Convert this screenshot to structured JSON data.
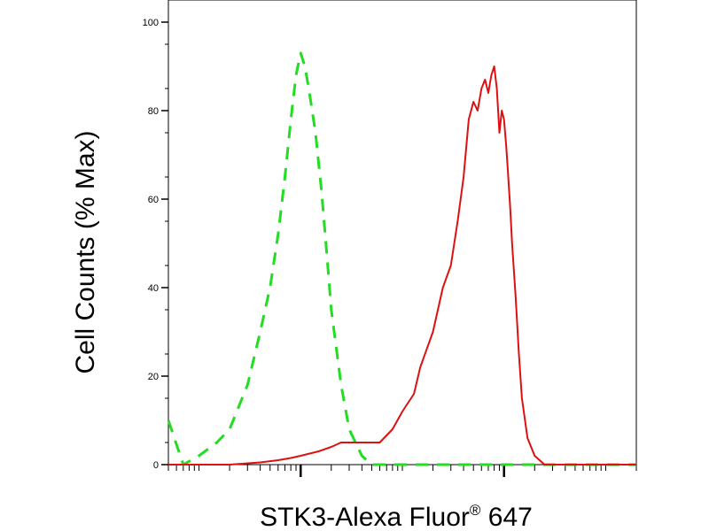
{
  "chart_data": {
    "type": "line",
    "title": "",
    "xlabel": "STK3-Alexa Fluor",
    "xlabel_super": "®",
    "xlabel_suffix": " 647",
    "ylabel": "Cell Counts (% Max)",
    "xscale": "log",
    "xlim": [
      0.5,
      20000
    ],
    "ylim": [
      0,
      100
    ],
    "y_ticks": [
      0,
      20,
      40,
      60,
      80,
      100
    ],
    "x_major_ticks": [
      10,
      1000
    ],
    "grid": false,
    "legend": "none",
    "colors": {
      "control": "#22dd22",
      "stk3": "#dd1111"
    },
    "series": [
      {
        "style": "dashed",
        "color": "#22dd22",
        "x": [
          0.5,
          0.7,
          1,
          1.5,
          2,
          3,
          4,
          5,
          6,
          7,
          8,
          9,
          10,
          11,
          12,
          14,
          16,
          18,
          20,
          25,
          30,
          40,
          50,
          60,
          80,
          100,
          150,
          300,
          1000,
          3000,
          20000
        ],
        "y": [
          10,
          0,
          2,
          5,
          8,
          18,
          30,
          40,
          52,
          65,
          78,
          88,
          93,
          90,
          85,
          75,
          62,
          48,
          35,
          18,
          8,
          2,
          0,
          0,
          0,
          0,
          0,
          0,
          0,
          0,
          0
        ]
      },
      {
        "style": "solid",
        "color": "#dd1111",
        "x": [
          0.5,
          1,
          2,
          4,
          6,
          8,
          10,
          15,
          20,
          25,
          30,
          40,
          60,
          80,
          100,
          130,
          150,
          200,
          250,
          300,
          350,
          400,
          450,
          500,
          550,
          600,
          650,
          700,
          750,
          800,
          850,
          900,
          950,
          1000,
          1050,
          1100,
          1150,
          1200,
          1300,
          1400,
          1500,
          1700,
          2000,
          2500,
          3000,
          4000,
          5000,
          6000,
          8000,
          10000,
          20000
        ],
        "y": [
          0,
          0,
          0,
          0.5,
          1,
          1.5,
          2,
          3,
          4,
          5,
          5,
          5,
          5,
          8,
          12,
          16,
          22,
          30,
          40,
          45,
          55,
          65,
          78,
          82,
          80,
          85,
          87,
          84,
          88,
          90,
          85,
          75,
          80,
          78,
          72,
          65,
          58,
          50,
          38,
          25,
          15,
          6,
          2,
          0,
          0,
          0,
          0,
          0,
          0,
          0,
          0
        ]
      }
    ]
  }
}
